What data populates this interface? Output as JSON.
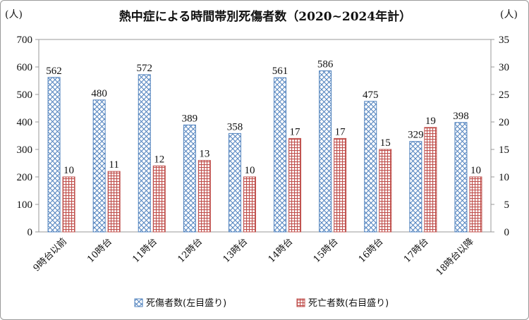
{
  "chart_data": {
    "type": "bar",
    "title": "熱中症による時間帯別死傷者数（2020~2024年計）",
    "left_axis_unit": "(人)",
    "right_axis_unit": "(人)",
    "categories": [
      "9時台以前",
      "10時台",
      "11時台",
      "12時台",
      "13時台",
      "14時台",
      "15時台",
      "16時台",
      "17時台",
      "18時台以降"
    ],
    "series": [
      {
        "name": "死傷者数(左目盛り)",
        "axis": "left",
        "color": "#4f81bd",
        "pattern": "diagonal-cross",
        "values": [
          562,
          480,
          572,
          389,
          358,
          561,
          586,
          475,
          329,
          398
        ]
      },
      {
        "name": "死亡者数(右目盛り)",
        "axis": "right",
        "color": "#c0504d",
        "pattern": "grid",
        "values": [
          10,
          11,
          12,
          13,
          10,
          17,
          17,
          15,
          19,
          10
        ]
      }
    ],
    "y_left": {
      "min": 0,
      "max": 700,
      "ticks": [
        0,
        100,
        200,
        300,
        400,
        500,
        600,
        700
      ]
    },
    "y_right": {
      "min": 0,
      "max": 35,
      "ticks": [
        0,
        5,
        10,
        15,
        20,
        25,
        30,
        35
      ]
    },
    "grid": false,
    "legend_position": "bottom",
    "data_labels": true
  }
}
